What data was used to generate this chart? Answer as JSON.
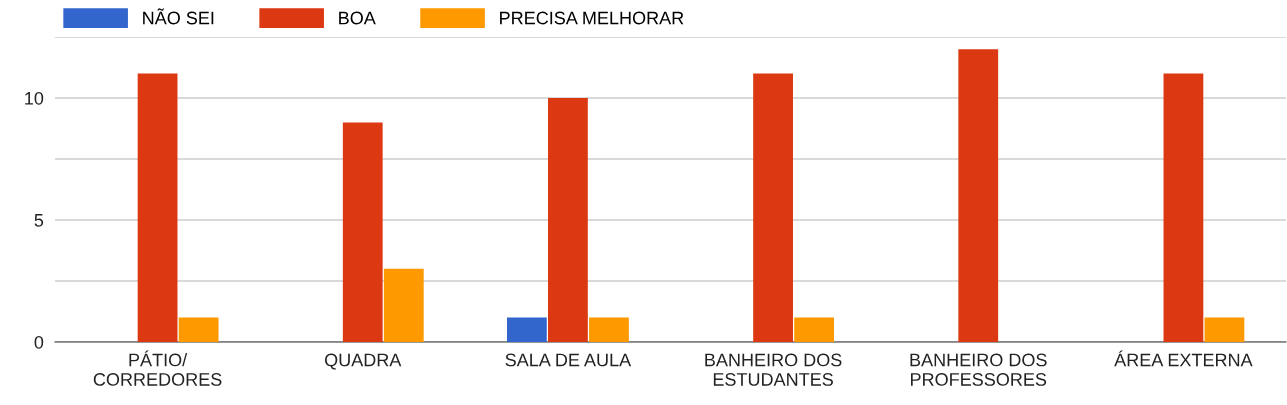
{
  "chart_data": {
    "type": "bar",
    "categories": [
      "PÁTIO/\nCORREDORES",
      "QUADRA",
      "SALA DE AULA",
      "BANHEIRO DOS\nESTUDANTES",
      "BANHEIRO DOS\nPROFESSORES",
      "ÁREA EXTERNA"
    ],
    "series": [
      {
        "name": "NÃO SEI",
        "color": "#3366cc",
        "values": [
          0,
          0,
          1,
          0,
          0,
          0
        ]
      },
      {
        "name": "BOA",
        "color": "#dc3912",
        "values": [
          11,
          9,
          10,
          11,
          12,
          11
        ]
      },
      {
        "name": "PRECISA MELHORAR",
        "color": "#ff9900",
        "values": [
          1,
          3,
          1,
          1,
          0,
          1
        ]
      }
    ],
    "ylim": [
      0,
      12.5
    ],
    "yticks": [
      0,
      {
        "value": 2.5,
        "label": null
      },
      5,
      {
        "value": 7.5,
        "label": null
      },
      10,
      {
        "value": 12.5,
        "label": null
      }
    ],
    "grid": "y",
    "legend": "top left"
  }
}
